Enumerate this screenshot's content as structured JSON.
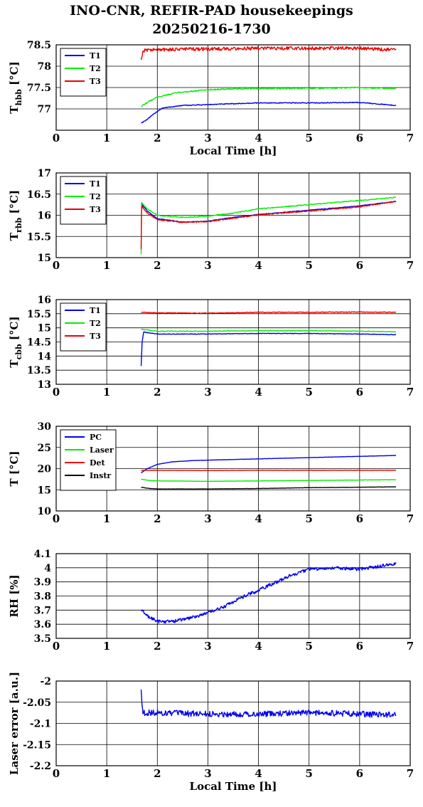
{
  "title_line1": "INO-CNR, REFIR-PAD housekeepings",
  "title_line2": "20250216-1730",
  "colors": {
    "blue": "#0000ee",
    "green": "#00ee00",
    "red": "#ee0000",
    "black": "#000000"
  },
  "chart_data": [
    {
      "type": "line",
      "ylabel": "T",
      "ylabel_sub": "hbb",
      "ylabel_unit": " [°C]",
      "xlabel": "Local Time [h]",
      "xlim": [
        0,
        7
      ],
      "ylim": [
        76.5,
        78.5
      ],
      "xticks": [
        "0",
        "1",
        "2",
        "3",
        "4",
        "5",
        "6",
        "7"
      ],
      "yticks": [
        [
          "76.5",
          ""
        ],
        [
          "77",
          "77"
        ],
        [
          "77.5",
          "77.5"
        ],
        [
          "78",
          "78"
        ],
        [
          "78.5",
          "78.5"
        ]
      ],
      "legend": "top-left",
      "grid": true,
      "series": [
        {
          "name": "T1",
          "color": "#0000ee",
          "noise": 0.01,
          "points": [
            [
              1.68,
              76.67
            ],
            [
              1.8,
              76.75
            ],
            [
              1.95,
              76.9
            ],
            [
              2.1,
              77.02
            ],
            [
              2.5,
              77.08
            ],
            [
              3.0,
              77.1
            ],
            [
              4.0,
              77.14
            ],
            [
              5.0,
              77.14
            ],
            [
              6.0,
              77.15
            ],
            [
              6.72,
              77.08
            ]
          ]
        },
        {
          "name": "T2",
          "color": "#00ee00",
          "noise": 0.015,
          "points": [
            [
              1.68,
              77.05
            ],
            [
              1.8,
              77.15
            ],
            [
              2.0,
              77.28
            ],
            [
              2.4,
              77.38
            ],
            [
              3.0,
              77.45
            ],
            [
              4.0,
              77.48
            ],
            [
              5.0,
              77.48
            ],
            [
              6.0,
              77.5
            ],
            [
              6.72,
              77.48
            ]
          ]
        },
        {
          "name": "T3",
          "color": "#ee0000",
          "noise": 0.04,
          "points": [
            [
              1.68,
              78.15
            ],
            [
              1.71,
              78.32
            ],
            [
              1.75,
              78.38
            ],
            [
              2.5,
              78.4
            ],
            [
              3.0,
              78.4
            ],
            [
              4.0,
              78.42
            ],
            [
              5.0,
              78.42
            ],
            [
              6.0,
              78.42
            ],
            [
              6.72,
              78.38
            ]
          ]
        }
      ]
    },
    {
      "type": "line",
      "ylabel": "T",
      "ylabel_sub": "rbb",
      "ylabel_unit": " [°C]",
      "xlabel": "",
      "xlim": [
        0,
        7
      ],
      "ylim": [
        15,
        17
      ],
      "xticks": [
        "0",
        "1",
        "2",
        "3",
        "4",
        "5",
        "6",
        "7"
      ],
      "yticks": [
        [
          "15",
          "15"
        ],
        [
          "15.5",
          "15.5"
        ],
        [
          "16",
          "16"
        ],
        [
          "16.5",
          "16.5"
        ],
        [
          "17",
          "17"
        ]
      ],
      "legend": "top-left",
      "grid": true,
      "series": [
        {
          "name": "T1",
          "color": "#0000ee",
          "noise": 0.008,
          "points": [
            [
              1.68,
              16.28
            ],
            [
              1.8,
              16.1
            ],
            [
              2.0,
              15.92
            ],
            [
              2.5,
              15.84
            ],
            [
              3.0,
              15.86
            ],
            [
              3.5,
              15.95
            ],
            [
              4.0,
              16.02
            ],
            [
              5.0,
              16.12
            ],
            [
              6.0,
              16.22
            ],
            [
              6.72,
              16.33
            ]
          ]
        },
        {
          "name": "T2",
          "color": "#00ee00",
          "noise": 0.012,
          "points": [
            [
              1.68,
              15.08
            ],
            [
              1.69,
              16.3
            ],
            [
              1.8,
              16.15
            ],
            [
              2.0,
              16.0
            ],
            [
              2.5,
              15.95
            ],
            [
              3.0,
              15.98
            ],
            [
              3.5,
              16.05
            ],
            [
              4.0,
              16.15
            ],
            [
              5.0,
              16.25
            ],
            [
              6.0,
              16.35
            ],
            [
              6.72,
              16.42
            ]
          ]
        },
        {
          "name": "T3",
          "color": "#ee0000",
          "noise": 0.012,
          "points": [
            [
              1.68,
              15.2
            ],
            [
              1.69,
              16.22
            ],
            [
              1.8,
              16.05
            ],
            [
              2.0,
              15.9
            ],
            [
              2.5,
              15.83
            ],
            [
              3.0,
              15.85
            ],
            [
              3.5,
              15.93
            ],
            [
              4.0,
              16.01
            ],
            [
              5.0,
              16.1
            ],
            [
              6.0,
              16.2
            ],
            [
              6.72,
              16.33
            ]
          ]
        }
      ]
    },
    {
      "type": "line",
      "ylabel": "T",
      "ylabel_sub": "cbb",
      "ylabel_unit": " [°C]",
      "xlabel": "",
      "xlim": [
        0,
        7
      ],
      "ylim": [
        13,
        16
      ],
      "xticks": [
        "0",
        "1",
        "2",
        "3",
        "4",
        "5",
        "6",
        "7"
      ],
      "yticks": [
        [
          "13",
          "13"
        ],
        [
          "13.5",
          "13.5"
        ],
        [
          "14",
          "14"
        ],
        [
          "14.5",
          "14.5"
        ],
        [
          "15",
          "15"
        ],
        [
          "15.5",
          "15.5"
        ],
        [
          "16",
          "16"
        ]
      ],
      "legend": "top-left",
      "grid": true,
      "series": [
        {
          "name": "T1",
          "color": "#0000ee",
          "noise": 0.01,
          "points": [
            [
              1.68,
              13.65
            ],
            [
              1.7,
              14.5
            ],
            [
              1.73,
              14.85
            ],
            [
              2.0,
              14.78
            ],
            [
              3.0,
              14.78
            ],
            [
              4.0,
              14.8
            ],
            [
              5.0,
              14.8
            ],
            [
              6.0,
              14.78
            ],
            [
              6.72,
              14.76
            ]
          ]
        },
        {
          "name": "T2",
          "color": "#00ee00",
          "noise": 0.01,
          "points": [
            [
              1.68,
              14.95
            ],
            [
              2.0,
              14.88
            ],
            [
              3.0,
              14.88
            ],
            [
              4.0,
              14.9
            ],
            [
              5.0,
              14.9
            ],
            [
              6.0,
              14.88
            ],
            [
              6.72,
              14.86
            ]
          ]
        },
        {
          "name": "T3",
          "color": "#ee0000",
          "noise": 0.012,
          "points": [
            [
              1.68,
              15.55
            ],
            [
              2.0,
              15.53
            ],
            [
              3.0,
              15.52
            ],
            [
              4.0,
              15.55
            ],
            [
              5.0,
              15.55
            ],
            [
              6.0,
              15.56
            ],
            [
              6.72,
              15.55
            ]
          ]
        }
      ]
    },
    {
      "type": "line",
      "ylabel": "T [°C]",
      "ylabel_sub": "",
      "ylabel_unit": "",
      "xlabel": "",
      "xlim": [
        0,
        7
      ],
      "ylim": [
        10,
        30
      ],
      "xticks": [
        "0",
        "1",
        "2",
        "3",
        "4",
        "5",
        "6",
        "7"
      ],
      "yticks": [
        [
          "10",
          "10"
        ],
        [
          "15",
          "15"
        ],
        [
          "20",
          "20"
        ],
        [
          "25",
          "25"
        ],
        [
          "30",
          "30"
        ]
      ],
      "legend": "top-left",
      "grid": true,
      "series": [
        {
          "name": "PC",
          "color": "#0000ee",
          "noise": 0.03,
          "points": [
            [
              1.68,
              19.0
            ],
            [
              1.8,
              20.0
            ],
            [
              2.0,
              21.0
            ],
            [
              2.3,
              21.6
            ],
            [
              2.7,
              21.9
            ],
            [
              3.0,
              22.0
            ],
            [
              4.0,
              22.3
            ],
            [
              5.0,
              22.6
            ],
            [
              6.0,
              22.9
            ],
            [
              6.72,
              23.1
            ]
          ]
        },
        {
          "name": "Laser",
          "color": "#00ee00",
          "noise": 0.03,
          "points": [
            [
              1.68,
              17.5
            ],
            [
              1.85,
              17.2
            ],
            [
              2.0,
              17.1
            ],
            [
              3.0,
              17.0
            ],
            [
              4.0,
              17.1
            ],
            [
              5.0,
              17.2
            ],
            [
              6.0,
              17.3
            ],
            [
              6.72,
              17.4
            ]
          ]
        },
        {
          "name": "Det",
          "color": "#ee0000",
          "noise": 0.03,
          "points": [
            [
              1.68,
              19.6
            ],
            [
              2.0,
              19.6
            ],
            [
              3.0,
              19.55
            ],
            [
              4.0,
              19.6
            ],
            [
              5.0,
              19.6
            ],
            [
              6.0,
              19.6
            ],
            [
              6.72,
              19.6
            ]
          ]
        },
        {
          "name": "Instr",
          "color": "#000000",
          "noise": 0.03,
          "points": [
            [
              1.68,
              15.6
            ],
            [
              1.85,
              15.3
            ],
            [
              2.0,
              15.2
            ],
            [
              3.0,
              15.2
            ],
            [
              4.0,
              15.3
            ],
            [
              5.0,
              15.5
            ],
            [
              6.0,
              15.6
            ],
            [
              6.72,
              15.7
            ]
          ]
        }
      ]
    },
    {
      "type": "line",
      "ylabel": "RH [%]",
      "ylabel_sub": "",
      "ylabel_unit": "",
      "xlabel": "",
      "xlim": [
        0,
        7
      ],
      "ylim": [
        3.5,
        4.1
      ],
      "xticks": [
        "0",
        "1",
        "2",
        "3",
        "4",
        "5",
        "6",
        "7"
      ],
      "yticks": [
        [
          "3.5",
          "3.5"
        ],
        [
          "3.6",
          "3.6"
        ],
        [
          "3.7",
          "3.7"
        ],
        [
          "3.8",
          "3.8"
        ],
        [
          "3.9",
          "3.9"
        ],
        [
          "4",
          "4"
        ],
        [
          "4.1",
          "4.1"
        ]
      ],
      "legend": "none",
      "grid": true,
      "series": [
        {
          "name": "",
          "color": "#0000ee",
          "noise": 0.012,
          "points": [
            [
              1.68,
              3.7
            ],
            [
              1.8,
              3.66
            ],
            [
              2.0,
              3.62
            ],
            [
              2.3,
              3.62
            ],
            [
              2.6,
              3.64
            ],
            [
              3.0,
              3.68
            ],
            [
              3.3,
              3.72
            ],
            [
              3.6,
              3.78
            ],
            [
              4.0,
              3.84
            ],
            [
              4.3,
              3.89
            ],
            [
              4.6,
              3.94
            ],
            [
              5.0,
              3.99
            ],
            [
              5.5,
              4.0
            ],
            [
              6.0,
              3.99
            ],
            [
              6.4,
              4.01
            ],
            [
              6.72,
              4.03
            ]
          ]
        }
      ]
    },
    {
      "type": "line",
      "ylabel": "Laser error [a.u.]",
      "ylabel_sub": "",
      "ylabel_unit": "",
      "xlabel": "Local Time [h]",
      "xlim": [
        0,
        7
      ],
      "ylim": [
        -2.2,
        -2
      ],
      "xticks": [
        "0",
        "1",
        "2",
        "3",
        "4",
        "5",
        "6",
        "7"
      ],
      "yticks": [
        [
          "-2.2",
          "-2.2"
        ],
        [
          "-2.15",
          "-2.15"
        ],
        [
          "-2.1",
          "-2.1"
        ],
        [
          "-2.05",
          "-2.05"
        ],
        [
          "-2",
          "-2"
        ]
      ],
      "legend": "none",
      "grid": true,
      "series": [
        {
          "name": "",
          "color": "#0000ee",
          "noise": 0.007,
          "points": [
            [
              1.68,
              -2.02
            ],
            [
              1.7,
              -2.06
            ],
            [
              1.72,
              -2.075
            ],
            [
              2.0,
              -2.075
            ],
            [
              3.0,
              -2.078
            ],
            [
              4.0,
              -2.078
            ],
            [
              5.0,
              -2.075
            ],
            [
              6.0,
              -2.078
            ],
            [
              6.72,
              -2.08
            ]
          ]
        }
      ]
    }
  ]
}
